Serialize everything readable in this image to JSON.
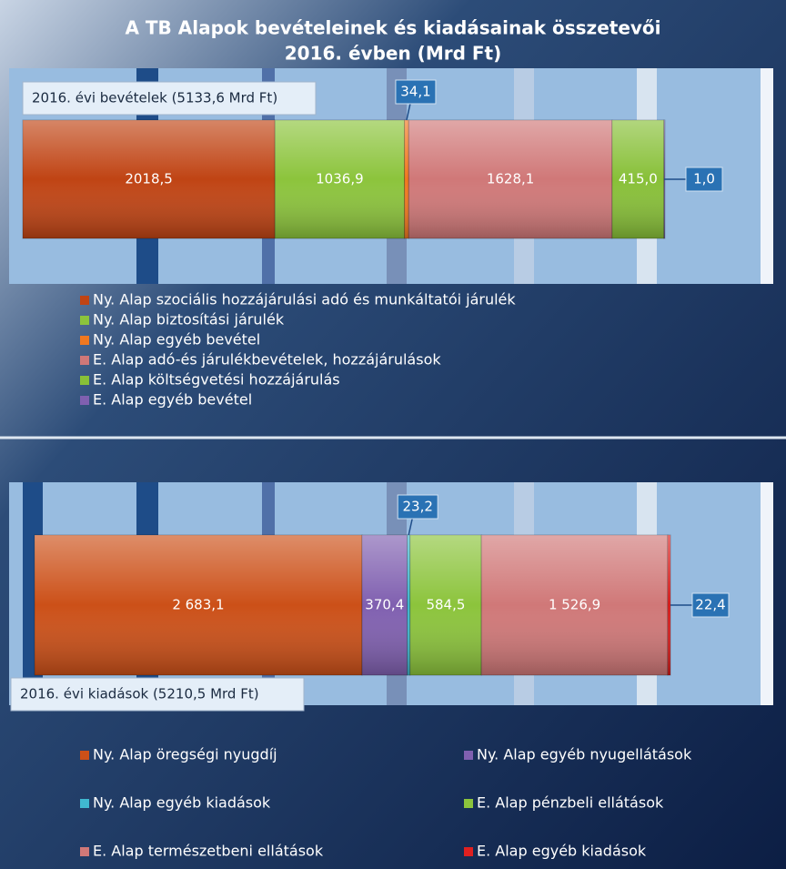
{
  "chart_data": [
    {
      "type": "bar",
      "orientation": "horizontal",
      "stacked": true,
      "title": "A TB Alapok bevételeinek és kiadásainak összetevői",
      "subtitle": "2016. évben (Mrd Ft)",
      "label": "2016. évi bevételek (5133,6 Mrd Ft)",
      "series": [
        {
          "name": "Ny. Alap szociális hozzájárulási adó és munkáltatói járulék",
          "color": "#c04414",
          "values": [
            2018.5
          ],
          "value_labels": [
            "2018,5"
          ]
        },
        {
          "name": "Ny. Alap biztosítási járulék",
          "color": "#8cc43c",
          "values": [
            1036.9
          ],
          "value_labels": [
            "1036,9"
          ]
        },
        {
          "name": "Ny. Alap egyéb bevétel",
          "color": "#f07820",
          "values": [
            34.1
          ],
          "value_labels": [
            "34,1"
          ]
        },
        {
          "name": "E. Alap adó-és járulékbevételek, hozzájárulások",
          "color": "#d07878",
          "values": [
            1628.1
          ],
          "value_labels": [
            "1628,1"
          ]
        },
        {
          "name": "E. Alap költségvetési hozzájárulás",
          "color": "#88c038",
          "values": [
            415.0
          ],
          "value_labels": [
            "415,0"
          ]
        },
        {
          "name": "E. Alap egyéb bevétel",
          "color": "#8060b0",
          "values": [
            1.0
          ],
          "value_labels": [
            "1,0"
          ]
        }
      ]
    },
    {
      "type": "bar",
      "orientation": "horizontal",
      "stacked": true,
      "label": "2016. évi kiadások (5210,5 Mrd Ft)",
      "series": [
        {
          "name": "Ny. Alap öregségi nyugdíj",
          "color": "#cc5018",
          "values": [
            2683.1
          ],
          "value_labels": [
            "2 683,1"
          ]
        },
        {
          "name": "Ny. Alap egyéb nyugellátások",
          "color": "#8060b0",
          "values": [
            370.4
          ],
          "value_labels": [
            "370,4"
          ]
        },
        {
          "name": "Ny. Alap egyéb kiadások",
          "color": "#40b8d0",
          "values": [
            23.2
          ],
          "value_labels": [
            "23,2"
          ]
        },
        {
          "name": "E. Alap pénzbeli ellátások",
          "color": "#8cc43c",
          "values": [
            584.5
          ],
          "value_labels": [
            "584,5"
          ]
        },
        {
          "name": "E. Alap természetbeni ellátások",
          "color": "#d07878",
          "values": [
            1526.9
          ],
          "value_labels": [
            "1 526,9"
          ]
        },
        {
          "name": "E. Alap egyéb kiadások",
          "color": "#e02020",
          "values": [
            22.4
          ],
          "value_labels": [
            "22,4"
          ]
        }
      ]
    }
  ]
}
